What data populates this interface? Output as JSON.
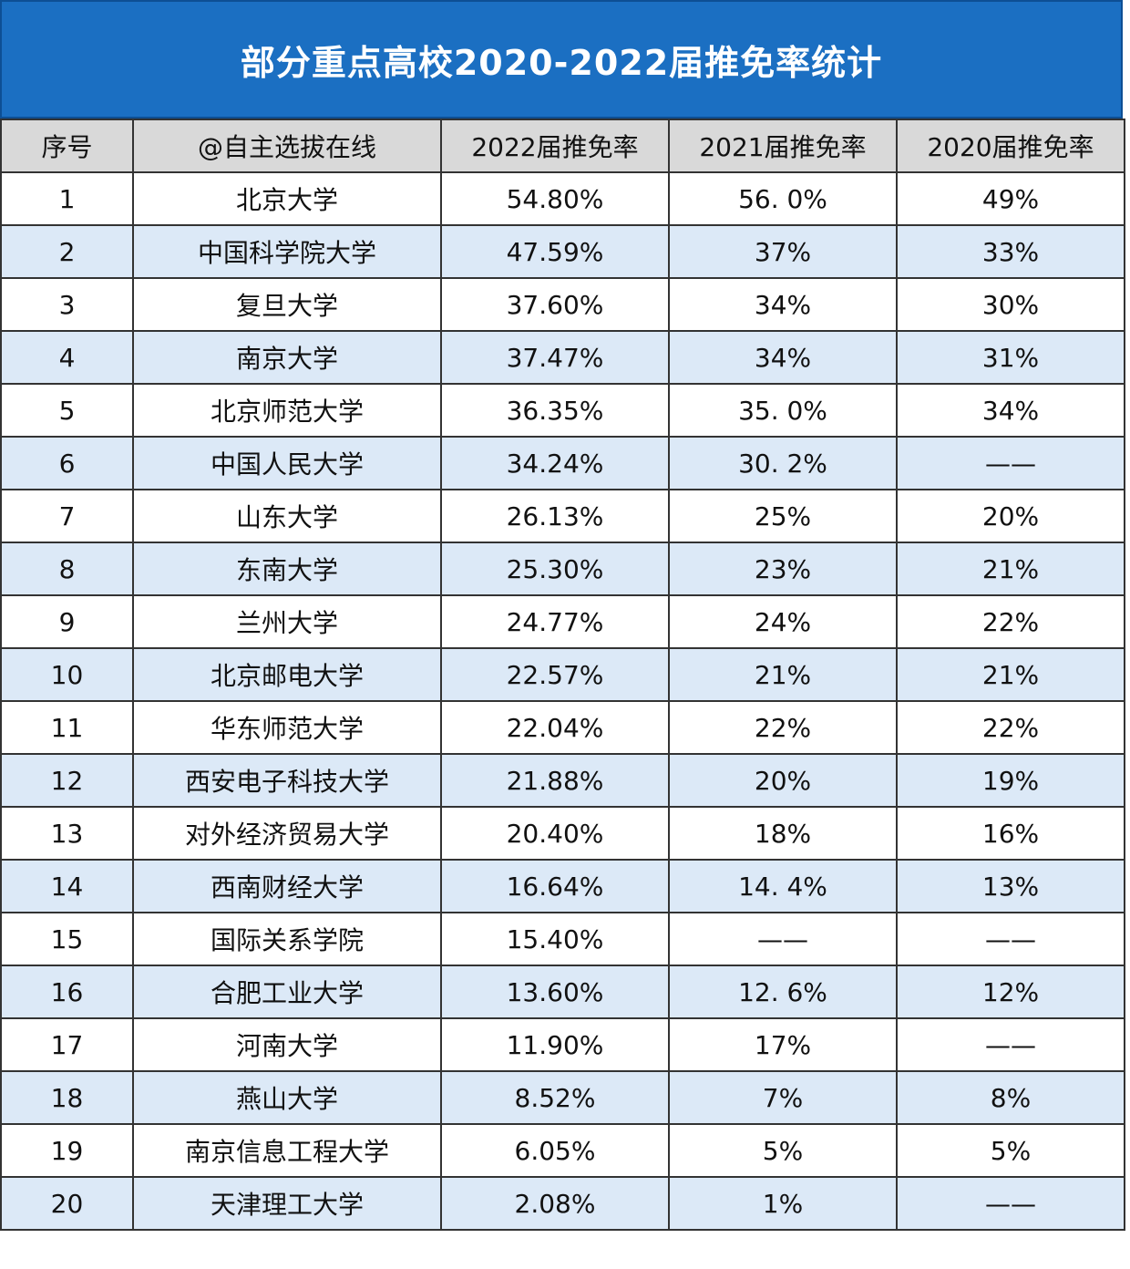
{
  "header": {
    "title": "部分重点高校2020-2022届推免率统计"
  },
  "table": {
    "columns": [
      "序号",
      "@自主选拔在线",
      "2022届推免率",
      "2021届推免率",
      "2020届推免率"
    ],
    "rows": [
      [
        "1",
        "北京大学",
        "54.80%",
        "56. 0%",
        "49%"
      ],
      [
        "2",
        "中国科学院大学",
        "47.59%",
        "37%",
        "33%"
      ],
      [
        "3",
        "复旦大学",
        "37.60%",
        "34%",
        "30%"
      ],
      [
        "4",
        "南京大学",
        "37.47%",
        "34%",
        "31%"
      ],
      [
        "5",
        "北京师范大学",
        "36.35%",
        "35. 0%",
        "34%"
      ],
      [
        "6",
        "中国人民大学",
        "34.24%",
        "30. 2%",
        "——"
      ],
      [
        "7",
        "山东大学",
        "26.13%",
        "25%",
        "20%"
      ],
      [
        "8",
        "东南大学",
        "25.30%",
        "23%",
        "21%"
      ],
      [
        "9",
        "兰州大学",
        "24.77%",
        "24%",
        "22%"
      ],
      [
        "10",
        "北京邮电大学",
        "22.57%",
        "21%",
        "21%"
      ],
      [
        "11",
        "华东师范大学",
        "22.04%",
        "22%",
        "22%"
      ],
      [
        "12",
        "西安电子科技大学",
        "21.88%",
        "20%",
        "19%"
      ],
      [
        "13",
        "对外经济贸易大学",
        "20.40%",
        "18%",
        "16%"
      ],
      [
        "14",
        "西南财经大学",
        "16.64%",
        "14. 4%",
        "13%"
      ],
      [
        "15",
        "国际关系学院",
        "15.40%",
        "——",
        "——"
      ],
      [
        "16",
        "合肥工业大学",
        "13.60%",
        "12. 6%",
        "12%"
      ],
      [
        "17",
        "河南大学",
        "11.90%",
        "17%",
        "——"
      ],
      [
        "18",
        "燕山大学",
        "8.52%",
        "7%",
        "8%"
      ],
      [
        "19",
        "南京信息工程大学",
        "6.05%",
        "5%",
        "5%"
      ],
      [
        "20",
        "天津理工大学",
        "2.08%",
        "1%",
        "——"
      ]
    ]
  }
}
